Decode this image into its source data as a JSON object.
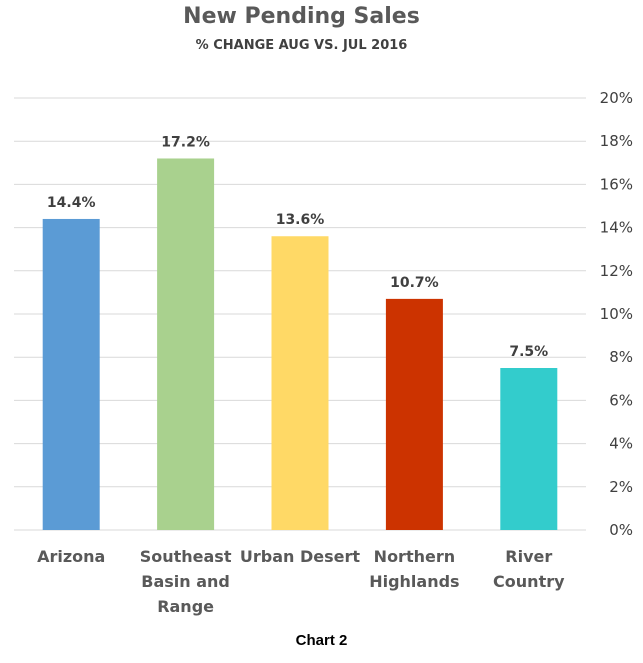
{
  "chart_data": {
    "type": "bar",
    "title": "New Pending Sales",
    "subtitle": "% CHANGE AUG VS. JUL 2016",
    "categories": [
      "Arizona",
      "Southeast Basin and Range",
      "Urban Desert",
      "Northern Highlands",
      "River Country"
    ],
    "category_lines": [
      [
        "Arizona"
      ],
      [
        "Southeast",
        "Basin and",
        "Range"
      ],
      [
        "Urban Desert"
      ],
      [
        "Northern",
        "Highlands"
      ],
      [
        "River",
        "Country"
      ]
    ],
    "values": [
      14.4,
      17.2,
      13.6,
      10.7,
      7.5
    ],
    "data_labels": [
      "14.4%",
      "17.2%",
      "13.6%",
      "10.7%",
      "7.5%"
    ],
    "bar_colors": [
      "#5B9BD5",
      "#A9D18E",
      "#FFD966",
      "#CC3300",
      "#33CCCC"
    ],
    "ylim": [
      0,
      20
    ],
    "yticks": [
      0,
      2,
      4,
      6,
      8,
      10,
      12,
      14,
      16,
      18,
      20
    ],
    "ytick_labels": [
      "0%",
      "2%",
      "4%",
      "6%",
      "8%",
      "10%",
      "12%",
      "14%",
      "16%",
      "18%",
      "20%"
    ],
    "y_axis_side": "right",
    "grid": true,
    "legend": "none",
    "xlabel": "",
    "ylabel": ""
  },
  "caption": "Chart 2"
}
